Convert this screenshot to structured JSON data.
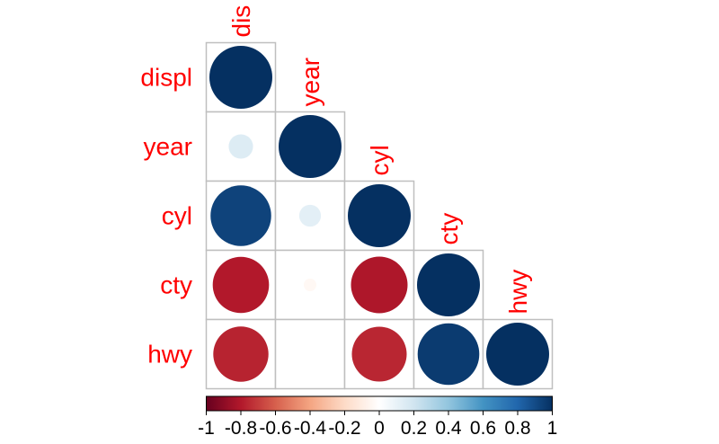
{
  "chart_data": {
    "type": "heatmap",
    "variables": [
      "displ",
      "year",
      "cyl",
      "cty",
      "hwy"
    ],
    "row_labels": [
      "displ",
      "year",
      "cyl",
      "cty",
      "hwy"
    ],
    "column_labels": [
      "dis",
      "year",
      "cyl",
      "cty",
      "hwy"
    ],
    "triangle": "lower",
    "glyph": "circle",
    "matrix": [
      [
        1.0,
        null,
        null,
        null,
        null
      ],
      [
        0.15,
        1.0,
        null,
        null,
        null
      ],
      [
        0.93,
        0.12,
        1.0,
        null,
        null
      ],
      [
        -0.8,
        -0.04,
        -0.81,
        1.0,
        null
      ],
      [
        -0.77,
        0.0,
        -0.76,
        0.96,
        1.0
      ]
    ],
    "colorbar": {
      "range": [
        -1,
        1
      ],
      "tick_labels": [
        "-1",
        "-0.8",
        "-0.6",
        "-0.4",
        "-0.2",
        "0",
        "0.2",
        "0.4",
        "0.6",
        "0.8",
        "1"
      ],
      "ticks": [
        -1,
        -0.8,
        -0.6,
        -0.4,
        -0.2,
        0,
        0.2,
        0.4,
        0.6,
        0.8,
        1
      ],
      "placement": "bottom"
    },
    "colors": {
      "label": "#ff0000",
      "grid": "#bfbfbf",
      "palette": [
        "#67001f",
        "#b2182b",
        "#d6604d",
        "#f4a582",
        "#fddbc7",
        "#ffffff",
        "#d1e5f0",
        "#92c5de",
        "#4393c3",
        "#2166ac",
        "#053061"
      ]
    }
  }
}
